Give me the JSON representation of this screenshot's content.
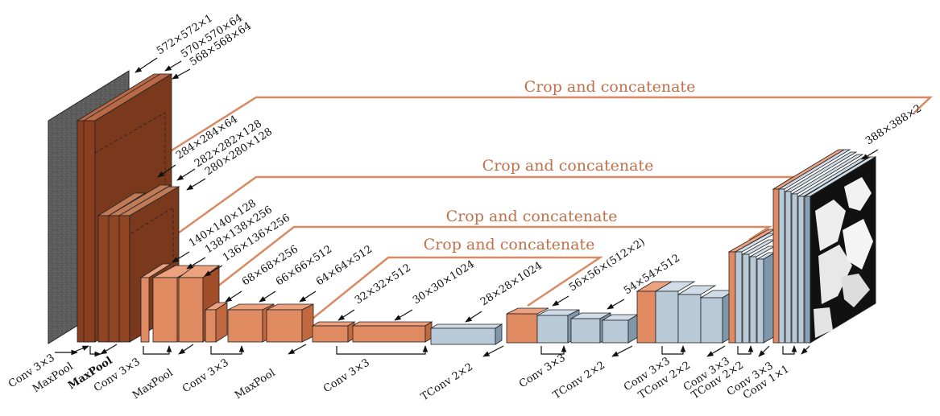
{
  "colors": {
    "encoder_front": "#e08a62",
    "encoder_top": "#eda27f",
    "encoder_side": "#c2683f",
    "deep_front": "#8a3e1f",
    "decoder_front": "#b8cad8",
    "decoder_top": "#d0dde8",
    "decoder_side": "#7e97ab",
    "crop_line": "#d98a63",
    "input_image": "#5e5e5e"
  },
  "crop_labels": [
    "Crop and concatenate",
    "Crop and concatenate",
    "Crop and concatenate",
    "Crop and concatenate"
  ],
  "dim_labels": {
    "d572": "572×572×1",
    "d570": "570×570×64",
    "d568": "568×568×64",
    "d284": "284×284×64",
    "d282": "282×282×128",
    "d280": "280×280×128",
    "d140": "140×140×128",
    "d138": "138×138×256",
    "d136": "136×136×256",
    "d68": "68×68×256",
    "d66": "66×66×512",
    "d64": "64×64×512",
    "d32": "32×32×512",
    "d30": "30×30×1024",
    "d28": "28×28×1024",
    "d56c": "56×56×(512×2)",
    "d54": "54×54×512",
    "d388": "388×388×2"
  },
  "op_labels": {
    "conv": "Conv 3×3",
    "maxpool": "MaxPool",
    "tconv": "TConv 2×2",
    "conv1": "Conv 1×1"
  },
  "input_image_label": "input-image",
  "output_image_label": "output-segmentation"
}
